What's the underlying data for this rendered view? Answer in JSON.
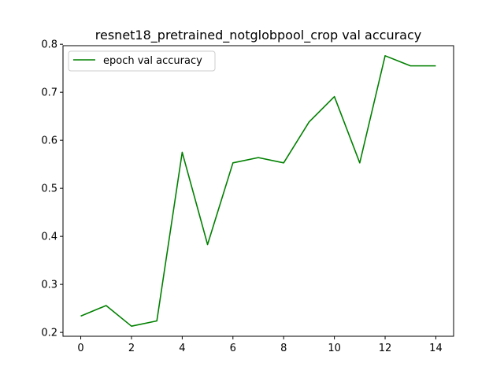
{
  "chart_data": {
    "type": "line",
    "title": "resnet18_pretrained_notglobpool_crop val accuracy",
    "xlabel": "",
    "ylabel": "",
    "x": [
      0,
      1,
      2,
      3,
      4,
      5,
      6,
      7,
      8,
      9,
      10,
      11,
      12,
      13,
      14
    ],
    "series": [
      {
        "name": "epoch val accuracy",
        "color": "#008000",
        "values": [
          0.234,
          0.256,
          0.213,
          0.224,
          0.575,
          0.383,
          0.553,
          0.564,
          0.553,
          0.638,
          0.691,
          0.553,
          0.776,
          0.755,
          0.755
        ]
      }
    ],
    "xlim": [
      -0.7,
      14.7
    ],
    "ylim": [
      0.192,
      0.797
    ],
    "xticks": [
      0,
      2,
      4,
      6,
      8,
      10,
      12,
      14
    ],
    "yticks": [
      0.2,
      0.3,
      0.4,
      0.5,
      0.6,
      0.7,
      0.8
    ],
    "xtick_labels": [
      "0",
      "2",
      "4",
      "6",
      "8",
      "10",
      "12",
      "14"
    ],
    "ytick_labels": [
      "0.2",
      "0.3",
      "0.4",
      "0.5",
      "0.6",
      "0.7",
      "0.8"
    ],
    "grid": false,
    "legend_position": "top-left"
  }
}
